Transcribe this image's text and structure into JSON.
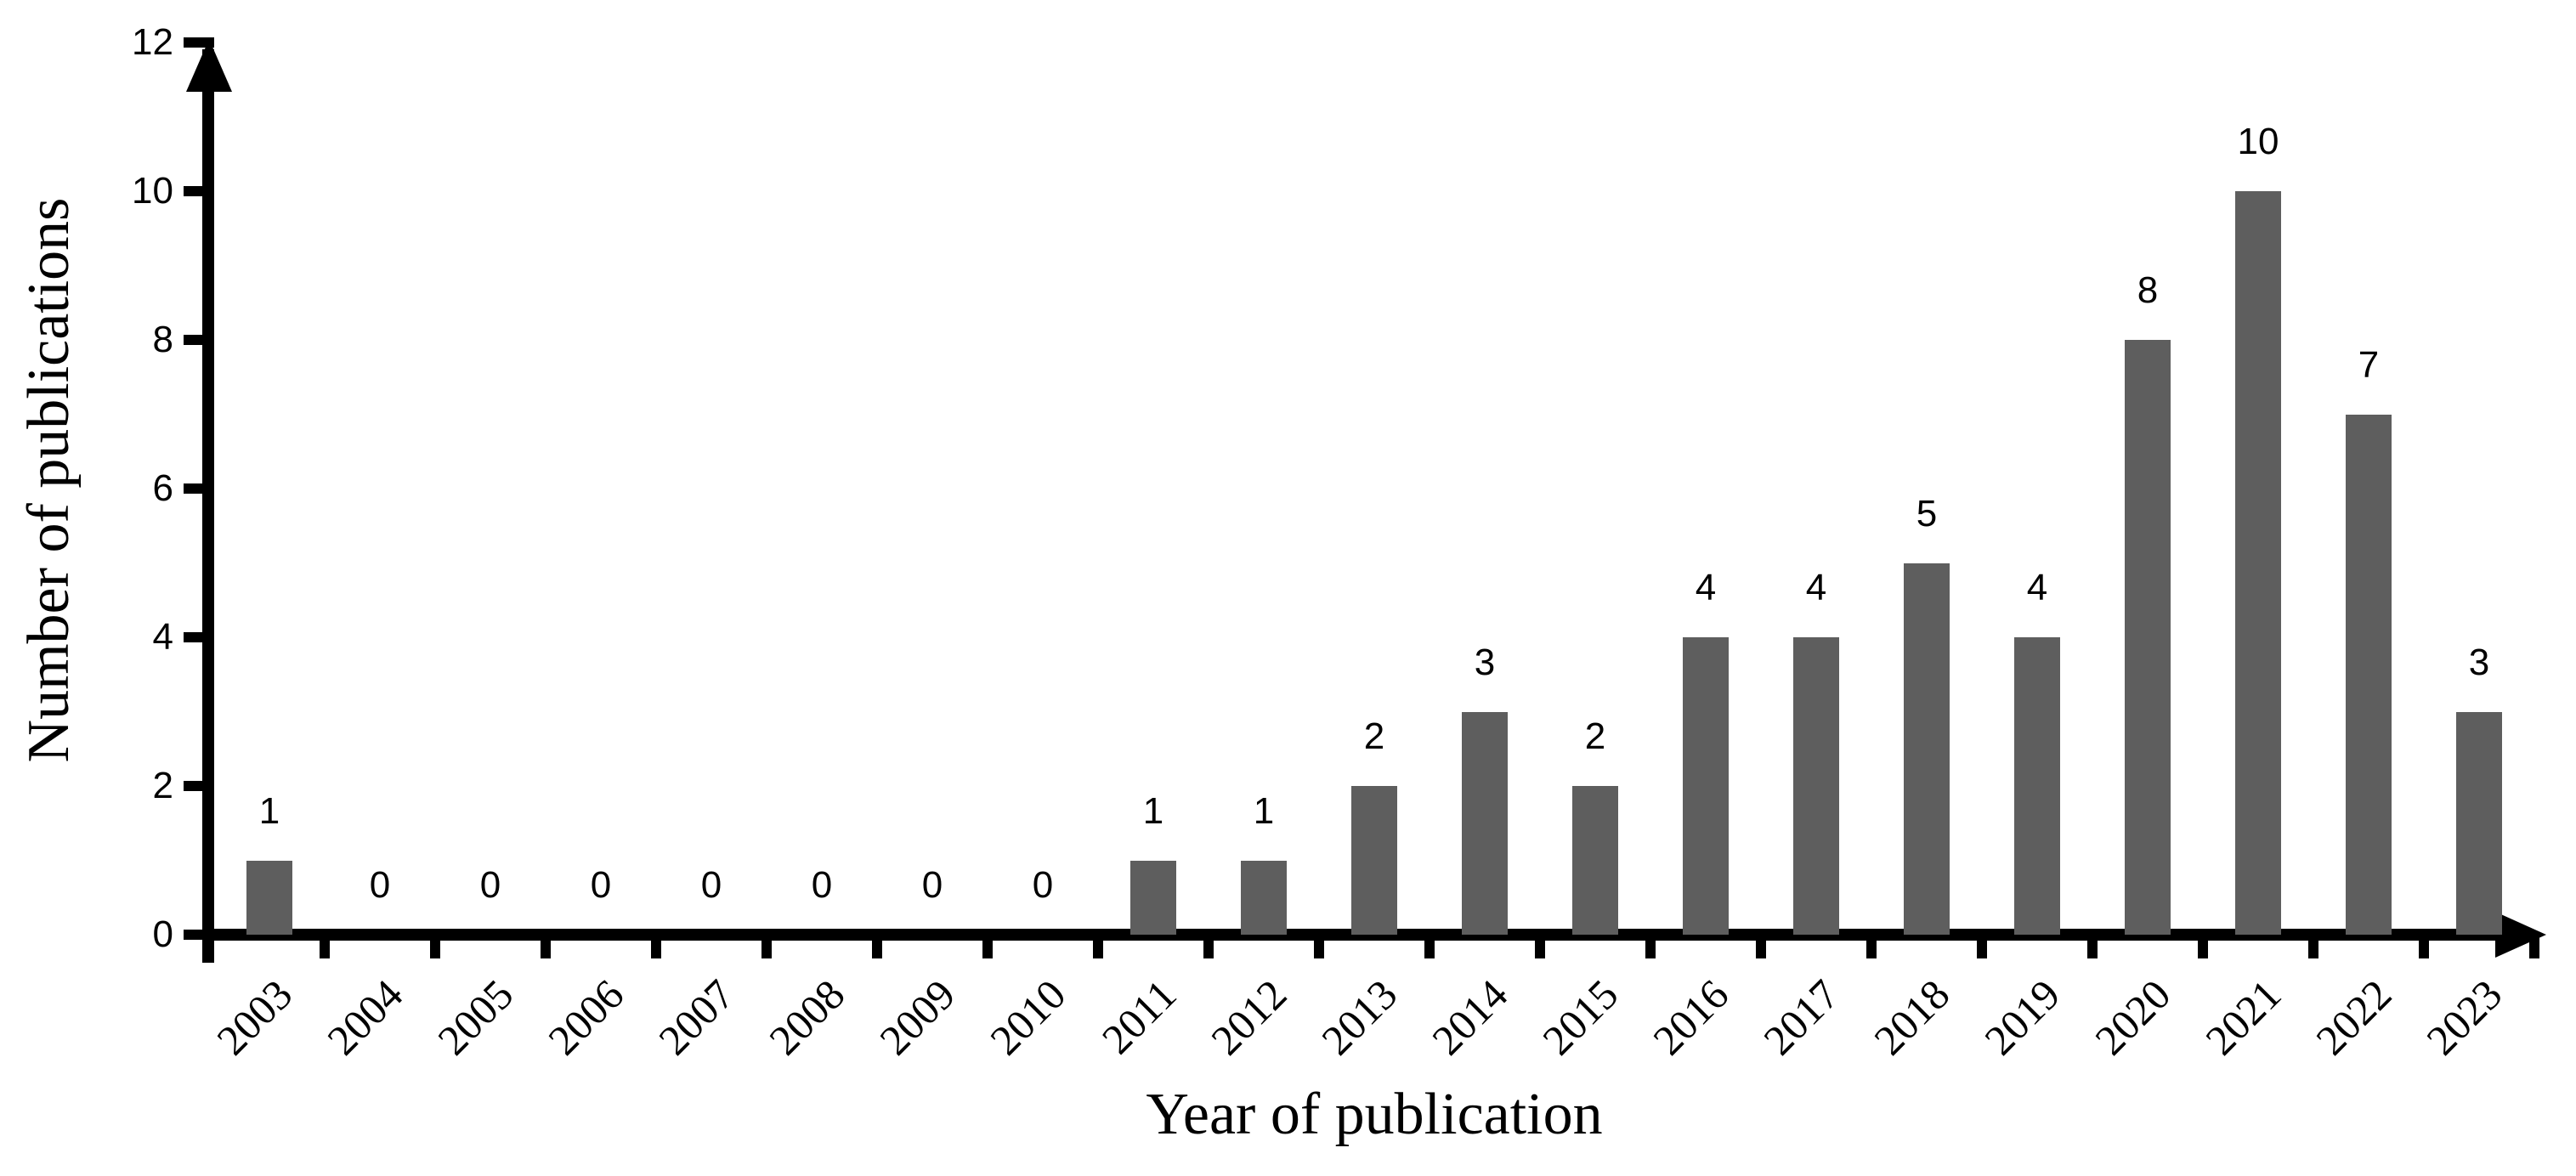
{
  "figure": {
    "background_color": "#ffffff",
    "bar_color": "#5e5e5e",
    "axis_color": "#000000",
    "text_color": "#000000"
  },
  "chart_data": {
    "type": "bar",
    "title": "",
    "xlabel": "Year of publication",
    "ylabel": "Number of publications",
    "categories": [
      "2003",
      "2004",
      "2005",
      "2006",
      "2007",
      "2008",
      "2009",
      "2010",
      "2011",
      "2012",
      "2013",
      "2014",
      "2015",
      "2016",
      "2017",
      "2018",
      "2019",
      "2020",
      "2021",
      "2022",
      "2023"
    ],
    "values": [
      1,
      0,
      0,
      0,
      0,
      0,
      0,
      0,
      1,
      1,
      2,
      3,
      2,
      4,
      4,
      5,
      4,
      8,
      10,
      7,
      3
    ],
    "value_labels": [
      "1",
      "0",
      "0",
      "0",
      "0",
      "0",
      "0",
      "0",
      "1",
      "1",
      "2",
      "3",
      "2",
      "4",
      "4",
      "5",
      "4",
      "8",
      "10",
      "7",
      "3"
    ],
    "yticks": [
      0,
      2,
      4,
      6,
      8,
      10,
      12
    ],
    "ylim": [
      0,
      12
    ],
    "grid": false,
    "legend": null,
    "x_tick_label_rotation_deg": 45,
    "axis_arrows": true,
    "data_labels_position": "above-bar"
  }
}
